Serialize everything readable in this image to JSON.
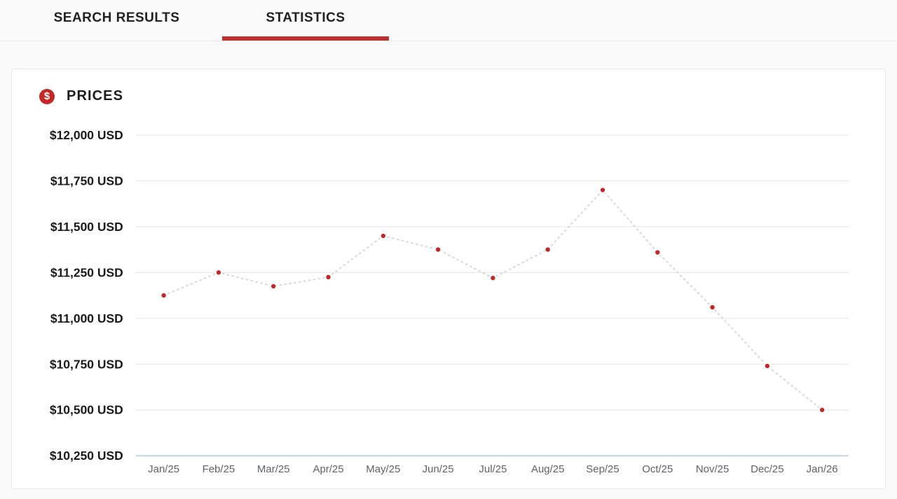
{
  "tabs": [
    {
      "label": "SEARCH RESULTS",
      "active": false
    },
    {
      "label": "STATISTICS",
      "active": true
    }
  ],
  "card": {
    "title": "PRICES",
    "icon_glyph": "$"
  },
  "colors": {
    "tab_indicator_red": "#b73434",
    "point_red": "#c52727",
    "icon_red": "#c52727",
    "line_dotted_gray": "#d8d8d8",
    "grid_gray": "#e4e4e4",
    "axis_blue": "#c2d6e2",
    "y_label_dark": "#1a1a1a",
    "x_label_gray": "#5f6368",
    "page_background": "#fafafa",
    "card_background": "#ffffff"
  },
  "chart_data": {
    "type": "line",
    "line_style": "dotted",
    "series_name": "Prices",
    "categories": [
      "Jan/25",
      "Feb/25",
      "Mar/25",
      "Apr/25",
      "May/25",
      "Jun/25",
      "Jul/25",
      "Aug/25",
      "Sep/25",
      "Oct/25",
      "Nov/25",
      "Dec/25",
      "Jan/26"
    ],
    "values": [
      11125,
      11250,
      11175,
      11225,
      11450,
      11375,
      11220,
      11375,
      11700,
      11360,
      11060,
      10740,
      10500
    ],
    "unit": "USD",
    "currency": "$",
    "y_tick_labels": [
      "$12,000 USD",
      "$11,750 USD",
      "$11,500 USD",
      "$11,250 USD",
      "$11,000 USD",
      "$10,750 USD",
      "$10,500 USD",
      "$10,250 USD"
    ],
    "y_tick_values": [
      12000,
      11750,
      11500,
      11250,
      11000,
      10750,
      10500,
      10250
    ],
    "ylim": [
      10250,
      12000
    ],
    "grid": true,
    "legend": "none"
  }
}
